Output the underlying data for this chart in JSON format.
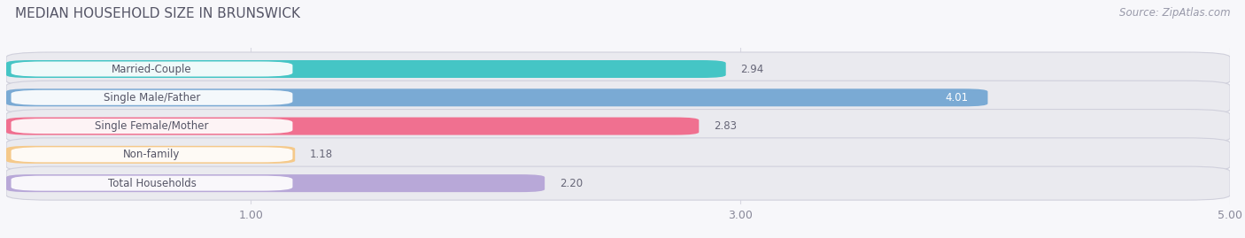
{
  "title": "MEDIAN HOUSEHOLD SIZE IN BRUNSWICK",
  "source": "Source: ZipAtlas.com",
  "categories": [
    "Married-Couple",
    "Single Male/Father",
    "Single Female/Mother",
    "Non-family",
    "Total Households"
  ],
  "values": [
    2.94,
    4.01,
    2.83,
    1.18,
    2.2
  ],
  "bar_colors": [
    "#45C5C5",
    "#7AAAD4",
    "#F07090",
    "#F5C98A",
    "#B8A8D8"
  ],
  "bar_bg_color": "#EAEAEF",
  "xmin": 0.0,
  "xmax": 5.0,
  "xticks": [
    1.0,
    3.0,
    5.0
  ],
  "bar_height": 0.62,
  "title_fontsize": 11,
  "source_fontsize": 8.5,
  "tick_fontsize": 9,
  "cat_fontsize": 8.5,
  "val_fontsize": 8.5,
  "background_color": "#F7F7FA",
  "bar_row_bg": "#EAEAEF",
  "label_pill_color": "#FFFFFF",
  "grid_color": "#D8D8E2",
  "text_dark": "#555566",
  "val_inside_color": "#FFFFFF",
  "val_outside_color": "#666677"
}
